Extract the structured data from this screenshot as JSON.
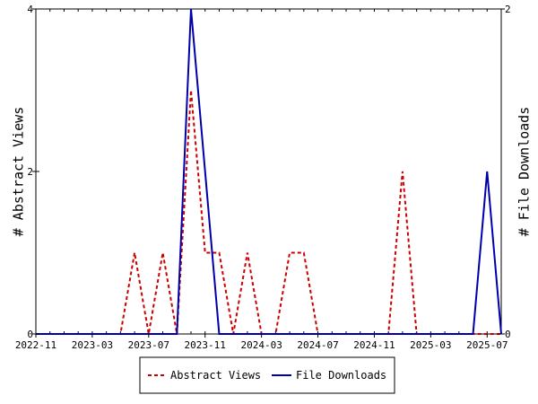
{
  "chart_data": {
    "type": "line",
    "x": [
      "2022-11",
      "2022-12",
      "2023-01",
      "2023-02",
      "2023-03",
      "2023-04",
      "2023-05",
      "2023-06",
      "2023-07",
      "2023-08",
      "2023-09",
      "2023-10",
      "2023-11",
      "2023-12",
      "2024-01",
      "2024-02",
      "2024-03",
      "2024-04",
      "2024-05",
      "2024-06",
      "2024-07",
      "2024-08",
      "2024-09",
      "2024-10",
      "2024-11",
      "2024-12",
      "2025-01",
      "2025-02",
      "2025-03",
      "2025-04",
      "2025-05",
      "2025-06",
      "2025-07",
      "2025-08"
    ],
    "xticks": [
      "2022-11",
      "2023-03",
      "2023-07",
      "2023-11",
      "2024-03",
      "2024-07",
      "2024-11",
      "2025-03",
      "2025-07"
    ],
    "series": [
      {
        "name": "Abstract Views",
        "axis": "left",
        "color": "#cc0000",
        "dash": "dashed",
        "values": [
          0,
          0,
          0,
          0,
          0,
          0,
          0,
          1,
          0,
          1,
          0,
          3,
          1,
          1,
          0,
          1,
          0,
          0,
          1,
          1,
          0,
          0,
          0,
          0,
          0,
          0,
          2,
          0,
          0,
          0,
          0,
          0,
          0,
          0
        ]
      },
      {
        "name": "File Downloads",
        "axis": "right",
        "color": "#0000aa",
        "dash": "solid",
        "values": [
          0,
          0,
          0,
          0,
          0,
          0,
          0,
          0,
          0,
          0,
          0,
          2,
          1,
          0,
          0,
          0,
          0,
          0,
          0,
          0,
          0,
          0,
          0,
          0,
          0,
          0,
          0,
          0,
          0,
          0,
          0,
          0,
          1,
          0
        ]
      }
    ],
    "ylabel": "# Abstract Views",
    "ylabel_right": "# File Downloads",
    "ylim": [
      0,
      4
    ],
    "ylim_right": [
      0,
      2
    ],
    "yticks": [
      "0",
      "2",
      "4"
    ],
    "yticks_right": [
      "0",
      "2"
    ],
    "grid": false,
    "legend_position": "bottom"
  }
}
